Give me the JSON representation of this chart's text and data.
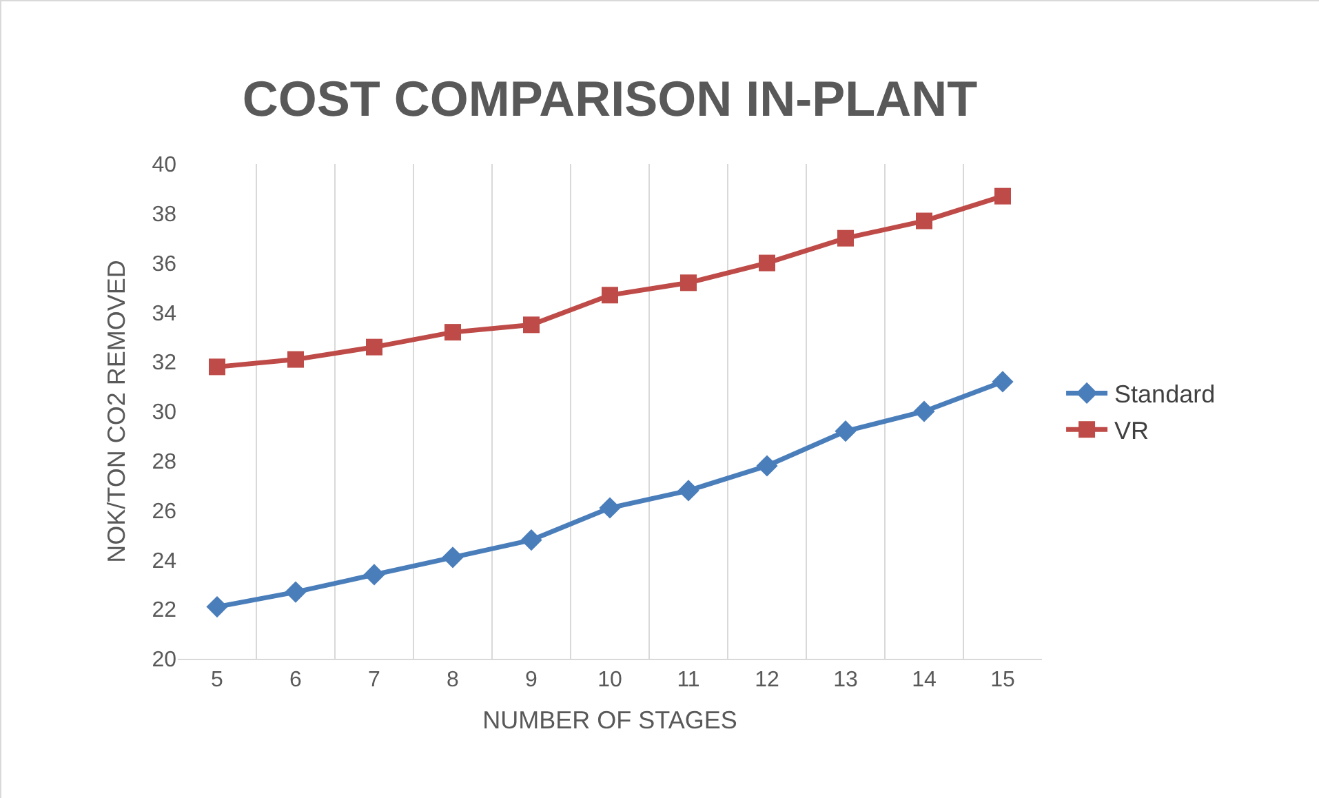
{
  "chart_data": {
    "type": "line",
    "title": "COST COMPARISON IN-PLANT",
    "xlabel": "NUMBER OF STAGES",
    "ylabel": "NOK/TON CO2 REMOVED",
    "categories": [
      "5",
      "6",
      "7",
      "8",
      "9",
      "10",
      "11",
      "12",
      "13",
      "14",
      "15"
    ],
    "series": [
      {
        "name": "Standard",
        "color": "#4a7ebb",
        "marker": "diamond",
        "values": [
          22.1,
          22.7,
          23.4,
          24.1,
          24.8,
          26.1,
          26.8,
          27.8,
          29.2,
          30.0,
          31.2
        ]
      },
      {
        "name": "VR",
        "color": "#be4b48",
        "marker": "square",
        "values": [
          31.8,
          32.1,
          32.6,
          33.2,
          33.5,
          34.7,
          35.2,
          36.0,
          37.0,
          37.7,
          38.7
        ]
      }
    ],
    "ylim": [
      20,
      40
    ],
    "yticks": [
      20,
      22,
      24,
      26,
      28,
      30,
      32,
      34,
      36,
      38,
      40
    ],
    "grid": "x",
    "legend": "right",
    "line_style": "solid"
  }
}
